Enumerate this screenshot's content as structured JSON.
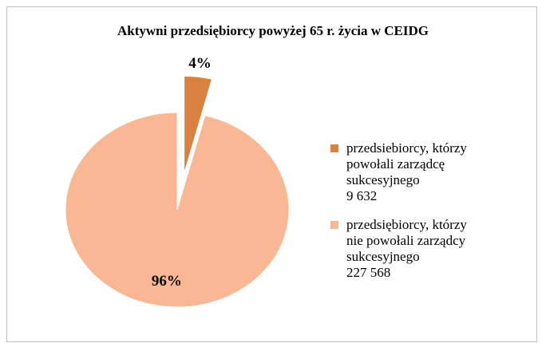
{
  "chart_data": {
    "type": "pie",
    "title": "Aktywni przedsiębiorcy powyżej 65 r. życia w CEIDG",
    "categories": [
      "przedsiebiorcy, którzy powołali zarządcę sukcesyjnego",
      "przedsiębiorcy, którzy nie powołali zarządcy sukcesyjnego"
    ],
    "counts": [
      {
        "value": 9632,
        "label": "9 632"
      },
      {
        "value": 227568,
        "label": "227 568"
      }
    ],
    "values": [
      4,
      96
    ],
    "value_labels": [
      "4%",
      "96%"
    ],
    "colors": [
      "#d9813f",
      "#f9b793"
    ],
    "exploded": [
      true,
      false
    ]
  }
}
